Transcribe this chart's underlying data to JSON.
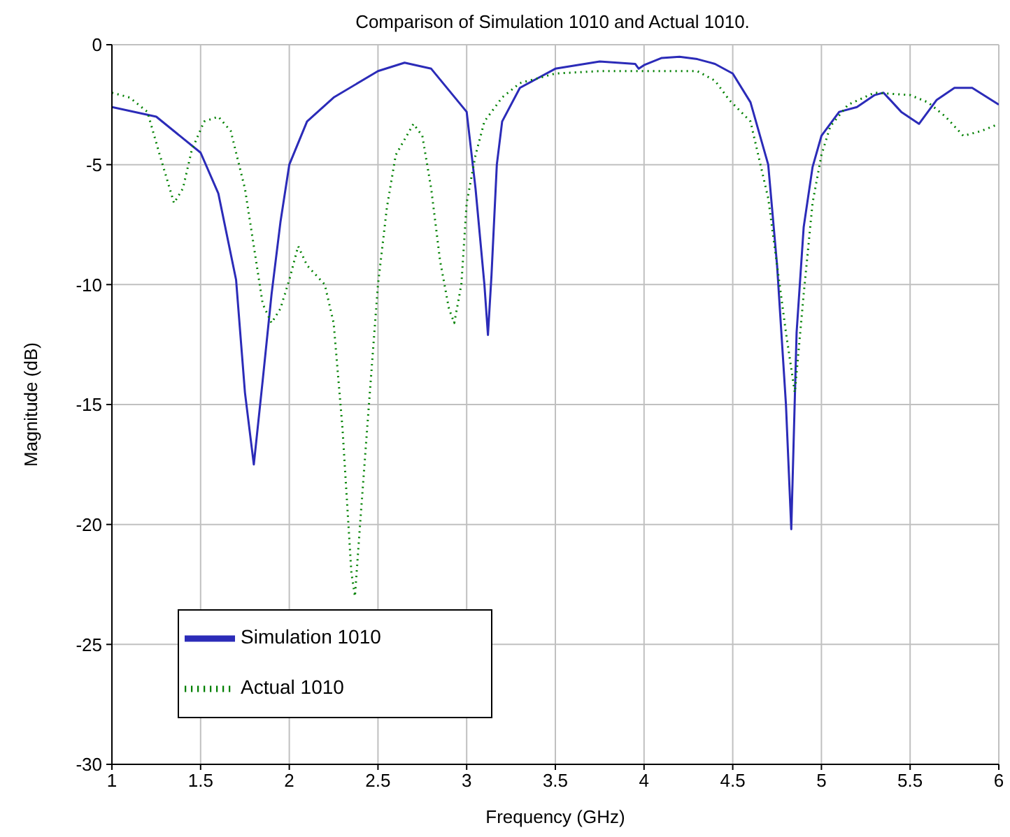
{
  "chart_data": {
    "type": "line",
    "title": "Comparison of Simulation 1010 and Actual 1010.",
    "xlabel": "Frequency (GHz)",
    "ylabel": "Magnitude (dB)",
    "xlim": [
      1,
      6
    ],
    "xticks": [
      1,
      1.5,
      2,
      2.5,
      3,
      3.5,
      4,
      4.5,
      5,
      5.5,
      6
    ],
    "ylim": [
      -30,
      0
    ],
    "yticks": [
      -30,
      -25,
      -20,
      -15,
      -10,
      -5,
      0
    ],
    "grid": true,
    "legend": "bottom left",
    "marker": "none",
    "series": [
      {
        "name": "Simulation 1010",
        "color": "#2b2bb8",
        "line_style": "solid",
        "x": [
          1,
          1.25,
          1.5,
          1.6,
          1.7,
          1.75,
          1.8,
          1.85,
          1.9,
          1.95,
          2,
          2.1,
          2.25,
          2.5,
          2.65,
          2.8,
          3,
          3.05,
          3.1,
          3.12,
          3.14,
          3.17,
          3.2,
          3.3,
          3.5,
          3.75,
          3.95,
          3.97,
          4,
          4.1,
          4.2,
          4.3,
          4.4,
          4.5,
          4.6,
          4.7,
          4.75,
          4.8,
          4.83,
          4.86,
          4.9,
          4.95,
          5,
          5.1,
          5.2,
          5.3,
          5.35,
          5.45,
          5.55,
          5.65,
          5.75,
          5.85,
          6
        ],
        "values": [
          -2.6,
          -3,
          -4.5,
          -6.2,
          -9.8,
          -14.5,
          -17.5,
          -14,
          -10.4,
          -7.4,
          -5,
          -3.2,
          -2.2,
          -1.1,
          -0.75,
          -1,
          -2.8,
          -6,
          -10,
          -12.1,
          -9.6,
          -5,
          -3.2,
          -1.8,
          -1,
          -0.7,
          -0.8,
          -1,
          -0.85,
          -0.55,
          -0.5,
          -0.6,
          -0.8,
          -1.2,
          -2.4,
          -5,
          -9.2,
          -15,
          -20.2,
          -12,
          -7.6,
          -5.1,
          -3.8,
          -2.8,
          -2.6,
          -2.1,
          -2,
          -2.8,
          -3.3,
          -2.3,
          -1.8,
          -1.8,
          -2.5
        ]
      },
      {
        "name": "Actual 1010",
        "color": "#008000",
        "line_style": "dotted",
        "x": [
          1,
          1.1,
          1.2,
          1.27,
          1.35,
          1.4,
          1.45,
          1.52,
          1.6,
          1.67,
          1.75,
          1.8,
          1.85,
          1.9,
          1.95,
          2,
          2.05,
          2.1,
          2.2,
          2.25,
          2.3,
          2.35,
          2.37,
          2.4,
          2.45,
          2.5,
          2.55,
          2.6,
          2.7,
          2.75,
          2.8,
          2.85,
          2.9,
          2.93,
          2.97,
          3,
          3.05,
          3.1,
          3.2,
          3.3,
          3.5,
          3.75,
          4,
          4.3,
          4.4,
          4.48,
          4.6,
          4.7,
          4.8,
          4.85,
          4.9,
          4.95,
          5,
          5.05,
          5.15,
          5.3,
          5.5,
          5.6,
          5.7,
          5.8,
          5.9,
          6
        ],
        "values": [
          -2,
          -2.2,
          -2.8,
          -4.6,
          -6.6,
          -6,
          -4.4,
          -3.2,
          -3,
          -3.6,
          -6,
          -8.4,
          -10.8,
          -11.6,
          -11,
          -9.8,
          -8.4,
          -9.2,
          -10,
          -11.6,
          -16,
          -22,
          -23,
          -19.9,
          -14.9,
          -10,
          -6.8,
          -4.6,
          -3.3,
          -3.8,
          -6,
          -9,
          -11,
          -11.6,
          -10,
          -6.6,
          -4.6,
          -3.2,
          -2.2,
          -1.6,
          -1.2,
          -1.1,
          -1.1,
          -1.1,
          -1.5,
          -2.3,
          -3.2,
          -6.4,
          -12,
          -14.5,
          -10.4,
          -6.6,
          -4.6,
          -3.4,
          -2.5,
          -2,
          -2.1,
          -2.4,
          -3,
          -3.8,
          -3.6,
          -3.3
        ]
      }
    ]
  }
}
